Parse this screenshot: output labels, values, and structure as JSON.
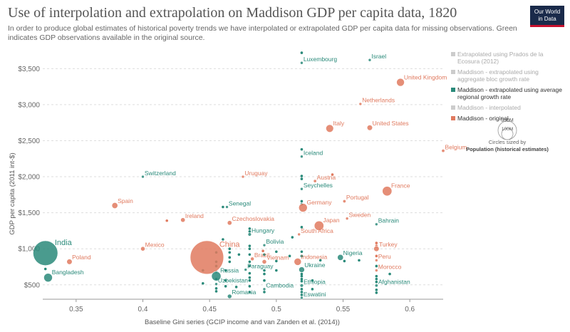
{
  "title": "Use of interpolation and extrapolation on Maddison GDP per capita data, 1820",
  "subtitle": "In order to produce global estimates of historical poverty trends we have interpolated or extrapolated GDP per capita data for missing observations. Green indicates GDP observations available in the original source.",
  "logo": {
    "line1": "Our World",
    "line2": "in Data"
  },
  "colors": {
    "green": "#2a8a7a",
    "red": "#e07a5f",
    "grey": "#bbbbbb",
    "gridline": "#dddddd"
  },
  "legend": {
    "items": [
      {
        "label_lines": [
          "Extrapolated using Prados de la",
          "Ecosura (2012)"
        ],
        "color": "#cccccc",
        "text_color": "#aaaaaa"
      },
      {
        "label_lines": [
          "Maddison - extrapolated using",
          "aggregate bloc growth rate"
        ],
        "color": "#cccccc",
        "text_color": "#aaaaaa"
      },
      {
        "label_lines": [
          "Maddison - extrapolated using average",
          "regional growth rate"
        ],
        "color": "#2a8a7a",
        "text_color": "#333333"
      },
      {
        "label_lines": [
          "Maddison - interpolated"
        ],
        "color": "#cccccc",
        "text_color": "#aaaaaa"
      },
      {
        "label_lines": [
          "Maddison - original"
        ],
        "color": "#e07a5f",
        "text_color": "#333333"
      }
    ],
    "size_key": {
      "big": "350M",
      "small": "100M",
      "caption": "Circles sized by",
      "caption_bold": "Population (historical estimates)"
    }
  },
  "chart_data": {
    "type": "scatter",
    "xlabel": "Baseline Gini series (GCIP income and van Zanden et al. (2014))",
    "ylabel": "GDP per capita (2011 int-$)",
    "xlim": [
      0.325,
      0.625
    ],
    "ylim": [
      300,
      3800
    ],
    "xticks": [
      "0.35",
      "0.4",
      "0.45",
      "0.5",
      "0.55",
      "0.6"
    ],
    "xtick_values": [
      0.35,
      0.4,
      0.45,
      0.5,
      0.55,
      0.6
    ],
    "yticks": [
      "$500",
      "$1,000",
      "$1,500",
      "$2,000",
      "$2,500",
      "$3,000",
      "$3,500"
    ],
    "ytick_values": [
      500,
      1000,
      1500,
      2000,
      2500,
      3000,
      3500
    ],
    "grid": "horizontal dashed",
    "legend_position": "right",
    "labeled_points": [
      {
        "label": "Luxembourg",
        "x": 0.519,
        "y": 3580,
        "pop": 0.2,
        "series": "green"
      },
      {
        "label": "Israel",
        "x": 0.57,
        "y": 3620,
        "pop": 0.3,
        "series": "green"
      },
      {
        "label": "United Kingdom",
        "x": 0.593,
        "y": 3310,
        "pop": 21,
        "series": "red"
      },
      {
        "label": "Netherlands",
        "x": 0.563,
        "y": 3010,
        "pop": 2.4,
        "series": "red"
      },
      {
        "label": "Italy",
        "x": 0.54,
        "y": 2670,
        "pop": 20,
        "series": "red"
      },
      {
        "label": "United States",
        "x": 0.57,
        "y": 2680,
        "pop": 10,
        "series": "red"
      },
      {
        "label": "Belgium",
        "x": 0.625,
        "y": 2360,
        "pop": 3.4,
        "series": "red"
      },
      {
        "label": "Iceland",
        "x": 0.519,
        "y": 2280,
        "pop": 0.1,
        "series": "green"
      },
      {
        "label": "Switzerland",
        "x": 0.4,
        "y": 2000,
        "pop": 2,
        "series": "green"
      },
      {
        "label": "Uruguay",
        "x": 0.475,
        "y": 2000,
        "pop": 0.1,
        "series": "red"
      },
      {
        "label": "Austria",
        "x": 0.529,
        "y": 1940,
        "pop": 3.3,
        "series": "red"
      },
      {
        "label": "Seychelles",
        "x": 0.519,
        "y": 1830,
        "pop": 0.1,
        "series": "green"
      },
      {
        "label": "France",
        "x": 0.583,
        "y": 1800,
        "pop": 31,
        "series": "red"
      },
      {
        "label": "Portugal",
        "x": 0.551,
        "y": 1660,
        "pop": 3.3,
        "series": "red"
      },
      {
        "label": "Senegal",
        "x": 0.463,
        "y": 1580,
        "pop": 1,
        "series": "green"
      },
      {
        "label": "Germany",
        "x": 0.52,
        "y": 1570,
        "pop": 25,
        "series": "red"
      },
      {
        "label": "Spain",
        "x": 0.379,
        "y": 1600,
        "pop": 12,
        "series": "red"
      },
      {
        "label": "Sweden",
        "x": 0.553,
        "y": 1420,
        "pop": 2.5,
        "series": "red"
      },
      {
        "label": "Ireland",
        "x": 0.43,
        "y": 1400,
        "pop": 7,
        "series": "red"
      },
      {
        "label": "Czechoslovakia",
        "x": 0.465,
        "y": 1360,
        "pop": 7,
        "series": "red"
      },
      {
        "label": "Bahrain",
        "x": 0.575,
        "y": 1340,
        "pop": 0.1,
        "series": "green"
      },
      {
        "label": "Japan",
        "x": 0.532,
        "y": 1320,
        "pop": 31,
        "series": "red"
      },
      {
        "label": "Hungary",
        "x": 0.48,
        "y": 1200,
        "pop": 4,
        "series": "green"
      },
      {
        "label": "South Africa",
        "x": 0.517,
        "y": 1200,
        "pop": 1.5,
        "series": "red"
      },
      {
        "label": "Bolivia",
        "x": 0.491,
        "y": 1050,
        "pop": 1.1,
        "series": "green"
      },
      {
        "label": "India",
        "x": 0.327,
        "y": 940,
        "pop": 209,
        "series": "green"
      },
      {
        "label": "Mexico",
        "x": 0.4,
        "y": 1000,
        "pop": 6.6,
        "series": "red"
      },
      {
        "label": "China",
        "x": 0.448,
        "y": 880,
        "pop": 381,
        "series": "red"
      },
      {
        "label": "Turkey",
        "x": 0.575,
        "y": 1000,
        "pop": 10,
        "series": "red"
      },
      {
        "label": "Poland",
        "x": 0.345,
        "y": 820,
        "pop": 10,
        "series": "red"
      },
      {
        "label": "Brazil",
        "x": 0.482,
        "y": 860,
        "pop": 4.5,
        "series": "red"
      },
      {
        "label": "Vietnam",
        "x": 0.491,
        "y": 820,
        "pop": 6.6,
        "series": "red"
      },
      {
        "label": "Indonesia",
        "x": 0.516,
        "y": 820,
        "pop": 17.9,
        "series": "red"
      },
      {
        "label": "Nigeria",
        "x": 0.548,
        "y": 880,
        "pop": 12,
        "series": "green"
      },
      {
        "label": "Peru",
        "x": 0.575,
        "y": 840,
        "pop": 1.3,
        "series": "red"
      },
      {
        "label": "Ukraine",
        "x": 0.519,
        "y": 710,
        "pop": 11,
        "series": "green"
      },
      {
        "label": "Paraguay",
        "x": 0.477,
        "y": 710,
        "pop": 0.1,
        "series": "green"
      },
      {
        "label": "Morocco",
        "x": 0.575,
        "y": 700,
        "pop": 3,
        "series": "red"
      },
      {
        "label": "Bangladesh",
        "x": 0.329,
        "y": 600,
        "pop": 25,
        "series": "green"
      },
      {
        "label": "Russia",
        "x": 0.455,
        "y": 620,
        "pop": 30,
        "series": "green"
      },
      {
        "label": "Uzbekistan",
        "x": 0.455,
        "y": 510,
        "pop": 2.4,
        "series": "green"
      },
      {
        "label": "Ethiopia",
        "x": 0.519,
        "y": 490,
        "pop": 4,
        "series": "green"
      },
      {
        "label": "Afghanistan",
        "x": 0.575,
        "y": 490,
        "pop": 3.3,
        "series": "green"
      },
      {
        "label": "Cambodia",
        "x": 0.491,
        "y": 440,
        "pop": 2.1,
        "series": "green"
      },
      {
        "label": "Romania",
        "x": 0.465,
        "y": 340,
        "pop": 6.4,
        "series": "green"
      },
      {
        "label": "Eswatini",
        "x": 0.519,
        "y": 320,
        "pop": 0.1,
        "series": "green"
      }
    ],
    "small_points": [
      {
        "x": 0.519,
        "y": 3720,
        "series": "green"
      },
      {
        "x": 0.519,
        "y": 2380,
        "series": "green"
      },
      {
        "x": 0.519,
        "y": 2010,
        "series": "green"
      },
      {
        "x": 0.519,
        "y": 1970,
        "series": "green"
      },
      {
        "x": 0.519,
        "y": 1660,
        "series": "green"
      },
      {
        "x": 0.519,
        "y": 1620,
        "series": "green"
      },
      {
        "x": 0.542,
        "y": 2030,
        "series": "red"
      },
      {
        "x": 0.46,
        "y": 1580,
        "series": "green"
      },
      {
        "x": 0.418,
        "y": 1390,
        "series": "red"
      },
      {
        "x": 0.48,
        "y": 1280,
        "series": "green"
      },
      {
        "x": 0.48,
        "y": 1240,
        "series": "green"
      },
      {
        "x": 0.519,
        "y": 1300,
        "series": "green"
      },
      {
        "x": 0.512,
        "y": 1160,
        "series": "green"
      },
      {
        "x": 0.48,
        "y": 1040,
        "series": "green"
      },
      {
        "x": 0.48,
        "y": 1000,
        "series": "green"
      },
      {
        "x": 0.46,
        "y": 1130,
        "series": "green"
      },
      {
        "x": 0.465,
        "y": 1000,
        "series": "green"
      },
      {
        "x": 0.575,
        "y": 1080,
        "series": "red"
      },
      {
        "x": 0.575,
        "y": 1040,
        "series": "red"
      },
      {
        "x": 0.465,
        "y": 950,
        "series": "green"
      },
      {
        "x": 0.465,
        "y": 880,
        "series": "green"
      },
      {
        "x": 0.465,
        "y": 820,
        "series": "green"
      },
      {
        "x": 0.455,
        "y": 950,
        "series": "green"
      },
      {
        "x": 0.455,
        "y": 820,
        "series": "green"
      },
      {
        "x": 0.472,
        "y": 920,
        "series": "green"
      },
      {
        "x": 0.48,
        "y": 920,
        "series": "green"
      },
      {
        "x": 0.48,
        "y": 820,
        "series": "green"
      },
      {
        "x": 0.48,
        "y": 760,
        "series": "green"
      },
      {
        "x": 0.49,
        "y": 970,
        "series": "red"
      },
      {
        "x": 0.491,
        "y": 920,
        "series": "green"
      },
      {
        "x": 0.5,
        "y": 960,
        "series": "green"
      },
      {
        "x": 0.5,
        "y": 830,
        "series": "green"
      },
      {
        "x": 0.51,
        "y": 900,
        "series": "green"
      },
      {
        "x": 0.519,
        "y": 960,
        "series": "green"
      },
      {
        "x": 0.519,
        "y": 900,
        "series": "green"
      },
      {
        "x": 0.533,
        "y": 840,
        "series": "green"
      },
      {
        "x": 0.551,
        "y": 830,
        "series": "green"
      },
      {
        "x": 0.562,
        "y": 840,
        "series": "green"
      },
      {
        "x": 0.575,
        "y": 900,
        "series": "red"
      },
      {
        "x": 0.575,
        "y": 760,
        "series": "green"
      },
      {
        "x": 0.585,
        "y": 650,
        "series": "green"
      },
      {
        "x": 0.455,
        "y": 760,
        "series": "green"
      },
      {
        "x": 0.462,
        "y": 700,
        "series": "green"
      },
      {
        "x": 0.48,
        "y": 660,
        "series": "green"
      },
      {
        "x": 0.48,
        "y": 600,
        "series": "green"
      },
      {
        "x": 0.48,
        "y": 560,
        "series": "green"
      },
      {
        "x": 0.48,
        "y": 480,
        "series": "green"
      },
      {
        "x": 0.48,
        "y": 400,
        "series": "green"
      },
      {
        "x": 0.491,
        "y": 700,
        "series": "green"
      },
      {
        "x": 0.491,
        "y": 650,
        "series": "green"
      },
      {
        "x": 0.491,
        "y": 560,
        "series": "green"
      },
      {
        "x": 0.491,
        "y": 400,
        "series": "green"
      },
      {
        "x": 0.5,
        "y": 700,
        "series": "green"
      },
      {
        "x": 0.519,
        "y": 650,
        "series": "green"
      },
      {
        "x": 0.519,
        "y": 620,
        "series": "green"
      },
      {
        "x": 0.519,
        "y": 580,
        "series": "green"
      },
      {
        "x": 0.519,
        "y": 550,
        "series": "green"
      },
      {
        "x": 0.519,
        "y": 440,
        "series": "green"
      },
      {
        "x": 0.519,
        "y": 400,
        "series": "green"
      },
      {
        "x": 0.519,
        "y": 360,
        "series": "green"
      },
      {
        "x": 0.527,
        "y": 560,
        "series": "green"
      },
      {
        "x": 0.527,
        "y": 440,
        "series": "green"
      },
      {
        "x": 0.575,
        "y": 620,
        "series": "green"
      },
      {
        "x": 0.575,
        "y": 580,
        "series": "green"
      },
      {
        "x": 0.575,
        "y": 540,
        "series": "green"
      },
      {
        "x": 0.575,
        "y": 430,
        "series": "green"
      },
      {
        "x": 0.575,
        "y": 390,
        "series": "green"
      },
      {
        "x": 0.455,
        "y": 680,
        "series": "green"
      },
      {
        "x": 0.455,
        "y": 580,
        "series": "green"
      },
      {
        "x": 0.455,
        "y": 450,
        "series": "green"
      },
      {
        "x": 0.455,
        "y": 410,
        "series": "green"
      },
      {
        "x": 0.462,
        "y": 560,
        "series": "green"
      },
      {
        "x": 0.462,
        "y": 480,
        "series": "green"
      },
      {
        "x": 0.47,
        "y": 470,
        "series": "green"
      },
      {
        "x": 0.327,
        "y": 720,
        "series": "green"
      },
      {
        "x": 0.445,
        "y": 700,
        "series": "green"
      },
      {
        "x": 0.445,
        "y": 520,
        "series": "green"
      }
    ]
  }
}
